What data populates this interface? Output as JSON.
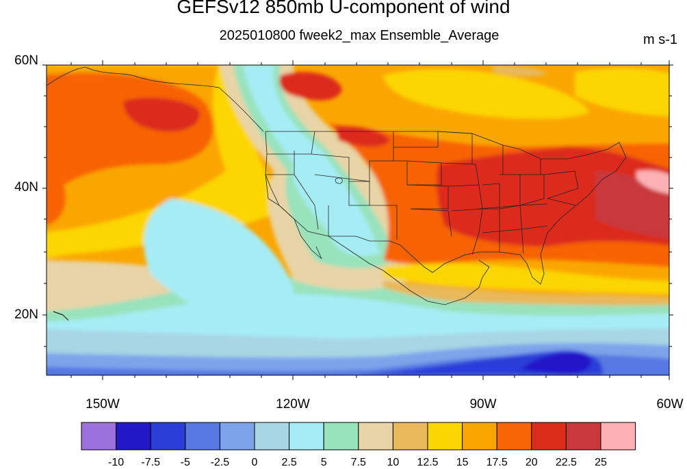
{
  "map": {
    "title": "GEFSv12 850mb U-component of wind",
    "subtitle": "2025010800 fweek2_max Ensemble_Average",
    "units": "m s-1",
    "lat_labels": [
      "60N",
      "40N",
      "20N"
    ],
    "lon_labels": [
      "150W",
      "120W",
      "90W",
      "60W"
    ],
    "colorbar": {
      "labels": [
        "-10",
        "-7.5",
        "-5",
        "-2.5",
        "0",
        "2.5",
        "5",
        "7.5",
        "10",
        "12.5",
        "15",
        "17.5",
        "20",
        "22.5",
        "25"
      ],
      "colors": [
        "#9b72dc",
        "#2318c8",
        "#2a3ed8",
        "#5578e2",
        "#7da4ea",
        "#a8d6e4",
        "#a6ecf4",
        "#98e2bc",
        "#e8d4a6",
        "#e8b85a",
        "#fcd600",
        "#faa600",
        "#f76406",
        "#dc2c1a",
        "#c8383c",
        "#fcb2b4"
      ]
    }
  }
}
